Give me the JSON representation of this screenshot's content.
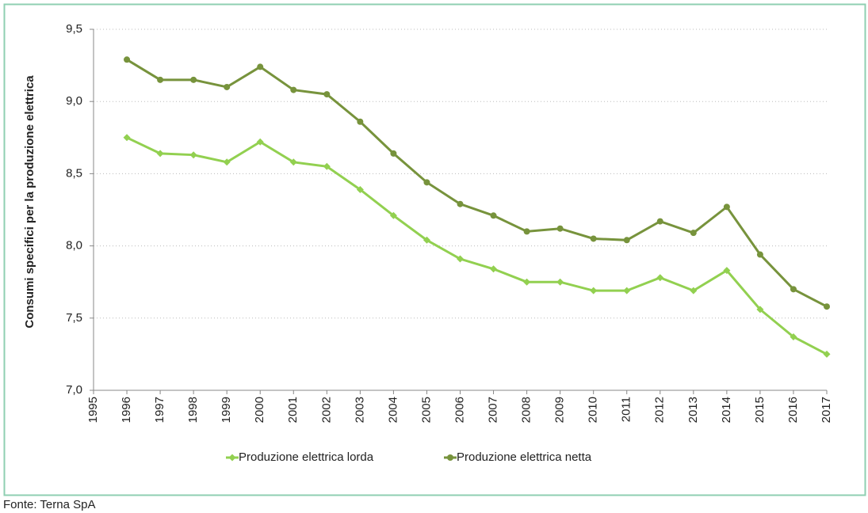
{
  "chart_data": {
    "type": "line",
    "y_label": "Consumi specifici per la produzione elettrica",
    "source": "Fonte: Terna SpA",
    "x": [
      1996,
      1997,
      1998,
      1999,
      2000,
      2001,
      2002,
      2003,
      2004,
      2005,
      2006,
      2007,
      2008,
      2009,
      2010,
      2011,
      2012,
      2013,
      2014,
      2015,
      2016,
      2017
    ],
    "series": [
      {
        "name": "Produzione elettrica lorda",
        "color": "#92d050",
        "marker": "diamond",
        "values": [
          8.75,
          8.64,
          8.63,
          8.58,
          8.72,
          8.58,
          8.55,
          8.39,
          8.21,
          8.04,
          7.91,
          7.84,
          7.75,
          7.75,
          7.69,
          7.69,
          7.78,
          7.69,
          7.83,
          7.56,
          7.37,
          7.25
        ]
      },
      {
        "name": "Produzione elettrica netta",
        "color": "#77933c",
        "marker": "circle",
        "values": [
          9.29,
          9.15,
          9.15,
          9.1,
          9.24,
          9.08,
          9.05,
          8.86,
          8.64,
          8.44,
          8.29,
          8.21,
          8.1,
          8.12,
          8.05,
          8.04,
          8.17,
          8.09,
          8.27,
          7.94,
          7.7,
          7.58
        ]
      }
    ],
    "xlim": [
      1995,
      2017
    ],
    "xticks": [
      1995,
      1996,
      1997,
      1998,
      1999,
      2000,
      2001,
      2002,
      2003,
      2004,
      2005,
      2006,
      2007,
      2008,
      2009,
      2010,
      2011,
      2012,
      2013,
      2014,
      2015,
      2016,
      2017
    ],
    "ylim": [
      7.0,
      9.5
    ],
    "yticks": [
      {
        "value": 7.0,
        "label": "7,0"
      },
      {
        "value": 7.5,
        "label": "7,5"
      },
      {
        "value": 8.0,
        "label": "8,0"
      },
      {
        "value": 8.5,
        "label": "8,5"
      },
      {
        "value": 9.0,
        "label": "9,0"
      },
      {
        "value": 9.5,
        "label": "9,5"
      }
    ],
    "grid": true,
    "legend": "bottom"
  }
}
